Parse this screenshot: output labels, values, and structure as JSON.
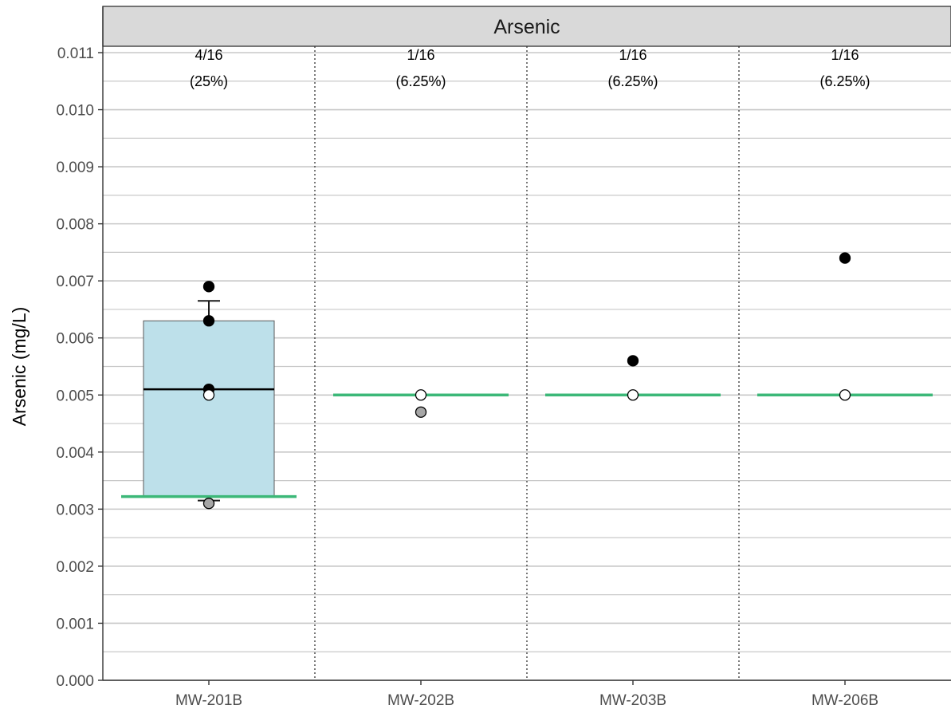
{
  "chart_data": {
    "type": "box",
    "title": "",
    "facet_label": "Arsenic",
    "ylabel": "Arsenic (mg/L)",
    "xlabel": "",
    "ylim": [
      0,
      0.011
    ],
    "y_ticks": [
      "0.000",
      "0.001",
      "0.002",
      "0.003",
      "0.004",
      "0.005",
      "0.006",
      "0.007",
      "0.008",
      "0.009",
      "0.010",
      "0.011"
    ],
    "grid": true,
    "categories": [
      "MW-201B",
      "MW-202B",
      "MW-203B",
      "MW-206B"
    ],
    "groups": [
      {
        "well": "MW-201B",
        "detect_count": "4/16",
        "detect_percent": "(25%)",
        "box": {
          "q1": 0.00322,
          "median": 0.0051,
          "q3": 0.0063,
          "whisker_low": 0.00315,
          "whisker_high": 0.00665
        },
        "reference_level": 0.00322,
        "points": [
          {
            "value": 0.0069,
            "kind": "detected"
          },
          {
            "value": 0.0063,
            "kind": "detected"
          },
          {
            "value": 0.0051,
            "kind": "detected"
          },
          {
            "value": 0.005,
            "kind": "non-detect"
          },
          {
            "value": 0.0031,
            "kind": "qualified"
          }
        ]
      },
      {
        "well": "MW-202B",
        "detect_count": "1/16",
        "detect_percent": "(6.25%)",
        "box": null,
        "reference_level": 0.005,
        "points": [
          {
            "value": 0.005,
            "kind": "non-detect"
          },
          {
            "value": 0.0047,
            "kind": "qualified"
          }
        ]
      },
      {
        "well": "MW-203B",
        "detect_count": "1/16",
        "detect_percent": "(6.25%)",
        "box": null,
        "reference_level": 0.005,
        "points": [
          {
            "value": 0.0056,
            "kind": "detected"
          },
          {
            "value": 0.005,
            "kind": "non-detect"
          }
        ]
      },
      {
        "well": "MW-206B",
        "detect_count": "1/16",
        "detect_percent": "(6.25%)",
        "box": null,
        "reference_level": 0.005,
        "points": [
          {
            "value": 0.0074,
            "kind": "detected"
          },
          {
            "value": 0.005,
            "kind": "non-detect"
          }
        ]
      }
    ],
    "colors": {
      "box_fill": "#bde0ea",
      "box_stroke": "#595959",
      "reference_line": "#3cb878",
      "grid": "#c8c8c8",
      "strip_fill": "#d9d9d9",
      "detected": "#000000",
      "non_detect": "#ffffff",
      "qualified": "#a6a6a6"
    }
  }
}
